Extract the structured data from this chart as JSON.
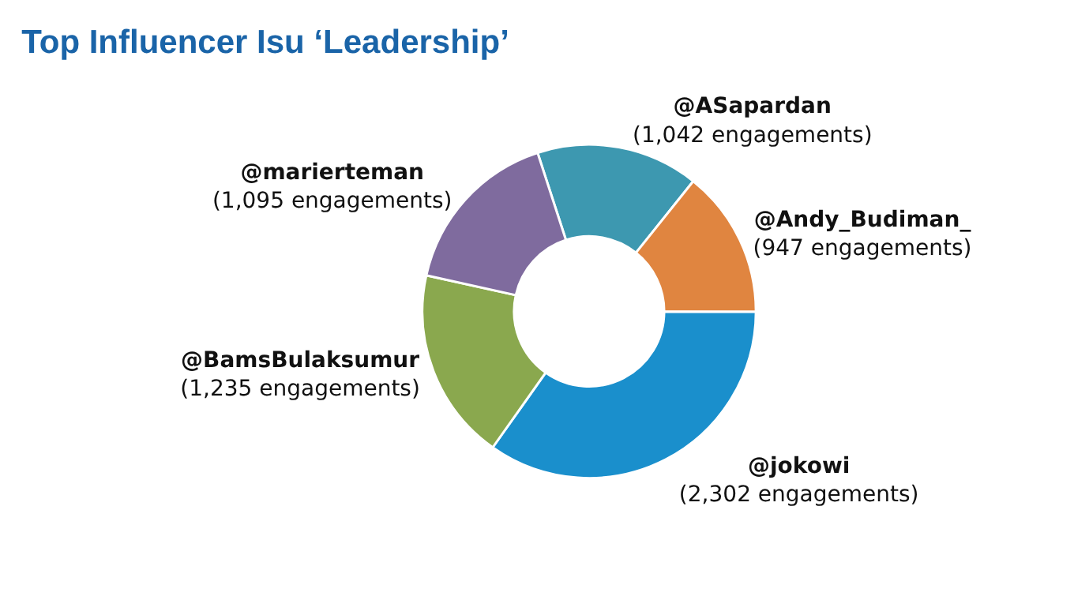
{
  "chart_data": {
    "type": "donut",
    "title": "Top Influencer Isu ‘Leadership’",
    "categories": [
      "@ASapardan",
      "@Andy_Budiman_",
      "@jokowi",
      "@BamsBulaksumur",
      "@marierteman"
    ],
    "values": [
      1042,
      947,
      2302,
      1235,
      1095
    ],
    "value_labels": [
      "(1,042 engagements)",
      "(947 engagements)",
      "(2,302 engagements)",
      "(1,235 engagements)",
      "(1,095 engagements)"
    ],
    "colors": [
      "#3d98b0",
      "#e08540",
      "#1a8fcc",
      "#8aa84e",
      "#7f6b9e"
    ],
    "legend": false
  }
}
